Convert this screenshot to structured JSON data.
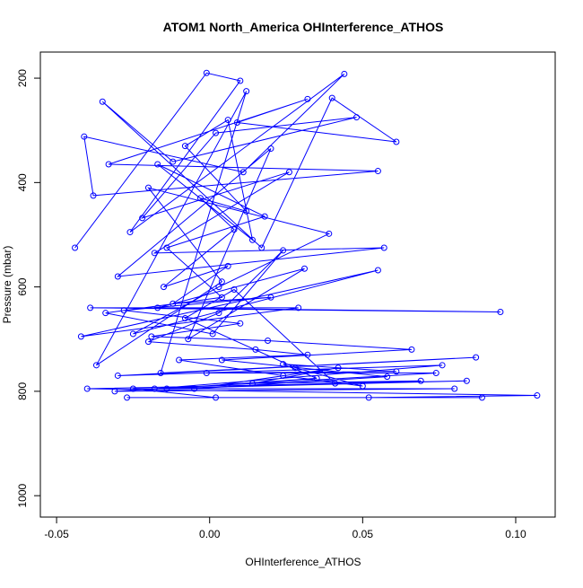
{
  "chart_data": {
    "type": "line",
    "title": "ATOM1 North_America OHInterference_ATHOS",
    "x_label": "OHInterference_ATHOS",
    "y_label": "Pressure (mbar)",
    "color": "#0000ff",
    "x": [
      -0.044,
      -0.001,
      0.01,
      -0.026,
      0.044,
      0.011,
      -0.041,
      -0.038,
      0.055,
      -0.033,
      0.032,
      0.009,
      0.061,
      0.04,
      0.017,
      -0.035,
      -0.012,
      0.048,
      0.002,
      -0.022,
      0.026,
      -0.018,
      0.057,
      -0.03,
      0.02,
      -0.007,
      0.031,
      -0.017,
      0.095,
      -0.039,
      0.029,
      -0.042,
      0.055,
      -0.025,
      0.003,
      0.039,
      -0.02,
      0.004,
      -0.037,
      0.012,
      -0.016,
      0.087,
      -0.03,
      0.076,
      -0.018,
      0.084,
      -0.04,
      0.107,
      0.052,
      0.089,
      -0.027,
      0.002,
      -0.025,
      0.08,
      -0.031,
      0.074,
      -0.001,
      0.061,
      0.024,
      0.035,
      -0.014,
      0.069,
      0.014,
      0.042,
      -0.005,
      0.058,
      0.004,
      0.066,
      0.019,
      -0.019,
      0.01,
      -0.028,
      0.02,
      -0.012,
      0.006,
      -0.015,
      0.008,
      -0.003,
      0.012,
      -0.008,
      0.006,
      0.014,
      -0.017,
      0.018,
      -0.014,
      0.004,
      -0.034,
      0.001,
      0.024,
      0.003,
      -0.02,
      0.015,
      0.032,
      -0.01,
      0.024,
      0.05,
      0.028,
      -0.008,
      0.008,
      0.041
    ],
    "values": [
      525,
      190,
      205,
      495,
      192,
      380,
      312,
      425,
      378,
      365,
      240,
      285,
      322,
      238,
      525,
      245,
      360,
      275,
      305,
      468,
      380,
      535,
      525,
      580,
      335,
      700,
      565,
      640,
      648,
      640,
      640,
      695,
      568,
      690,
      600,
      498,
      410,
      590,
      750,
      225,
      765,
      735,
      770,
      750,
      795,
      780,
      795,
      808,
      812,
      812,
      812,
      812,
      795,
      795,
      800,
      765,
      765,
      762,
      748,
      775,
      795,
      780,
      785,
      755,
      795,
      772,
      740,
      720,
      703,
      695,
      670,
      645,
      620,
      632,
      560,
      600,
      490,
      430,
      455,
      330,
      280,
      510,
      365,
      465,
      525,
      620,
      650,
      690,
      530,
      650,
      705,
      720,
      730,
      740,
      770,
      790,
      755,
      660,
      605,
      785
    ],
    "xlim": [
      -0.0553,
      0.1129
    ],
    "ylim": [
      1041,
      150
    ],
    "xticks": [
      -0.05,
      {
        "value": 0,
        "label": "0.00"
      },
      0.05,
      {
        "value": 0.1,
        "label": "0.10"
      }
    ],
    "yticks": [
      200,
      400,
      600,
      800,
      1000
    ]
  }
}
